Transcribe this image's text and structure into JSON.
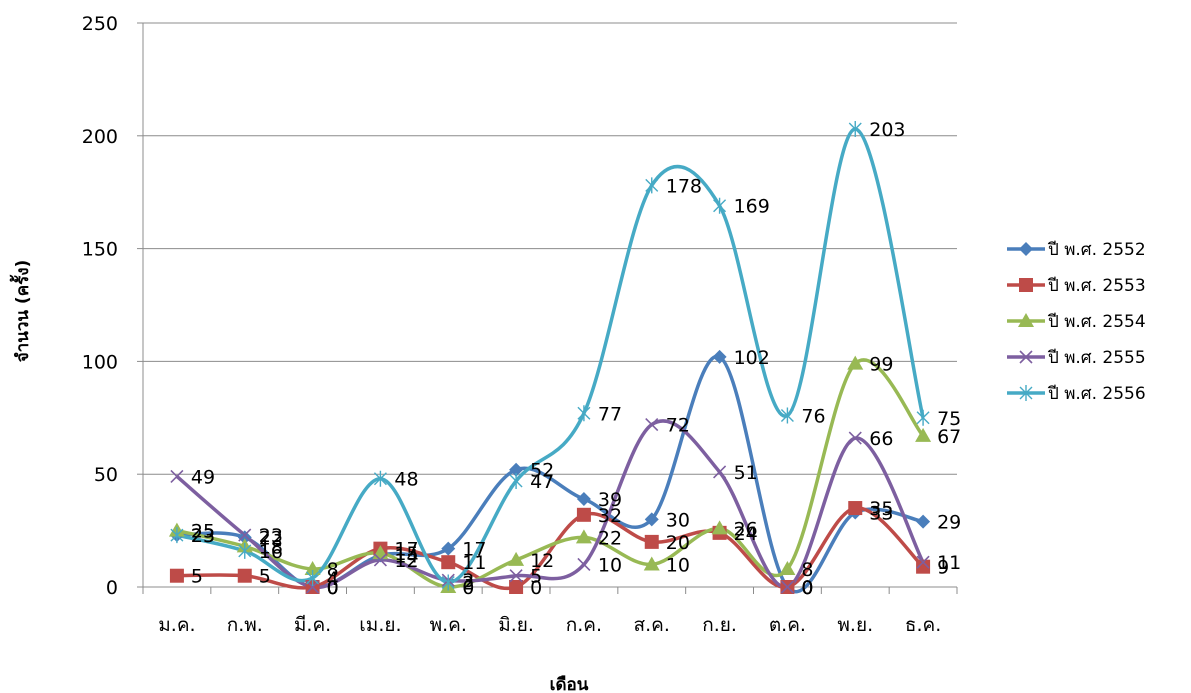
{
  "chart_data": {
    "type": "line",
    "title": "",
    "xlabel": "เดือน",
    "ylabel": "จำนวน (ครั้ง)",
    "ylim": [
      0,
      250
    ],
    "yticks": [
      0,
      50,
      100,
      150,
      200,
      250
    ],
    "grid": "horizontal",
    "legend": "right",
    "smooth": true,
    "categories": [
      "ม.ค.",
      "ก.พ.",
      "มี.ค.",
      "เม.ย.",
      "พ.ค.",
      "มิ.ย.",
      "ก.ค.",
      "ส.ค.",
      "ก.ย.",
      "ต.ค.",
      "พ.ย.",
      "ธ.ค."
    ],
    "series": [
      {
        "name": "ปี พ.ศ. 2552",
        "color": "#4a7ebb",
        "marker": "diamond",
        "values": [
          23,
          22,
          0,
          14,
          17,
          52,
          39,
          30,
          102,
          0,
          33,
          29
        ]
      },
      {
        "name": "ปี พ.ศ. 2553",
        "color": "#be4b48",
        "marker": "square",
        "values": [
          5,
          5,
          0,
          17,
          11,
          0,
          32,
          20,
          24,
          0,
          35,
          9
        ]
      },
      {
        "name": "ปี พ.ศ. 2554",
        "color": "#98b954",
        "marker": "triangle",
        "values": [
          25,
          18,
          8,
          15,
          0,
          12,
          22,
          10,
          26,
          8,
          99,
          67
        ]
      },
      {
        "name": "ปี พ.ศ. 2555",
        "color": "#7d5fa0",
        "marker": "x",
        "values": [
          49,
          23,
          0,
          12,
          3,
          5,
          10,
          72,
          51,
          0,
          66,
          11
        ]
      },
      {
        "name": "ปี พ.ศ. 2556",
        "color": "#46aac5",
        "marker": "star",
        "values": [
          23,
          16,
          4,
          48,
          2,
          47,
          77,
          178,
          169,
          76,
          203,
          75
        ]
      }
    ]
  }
}
